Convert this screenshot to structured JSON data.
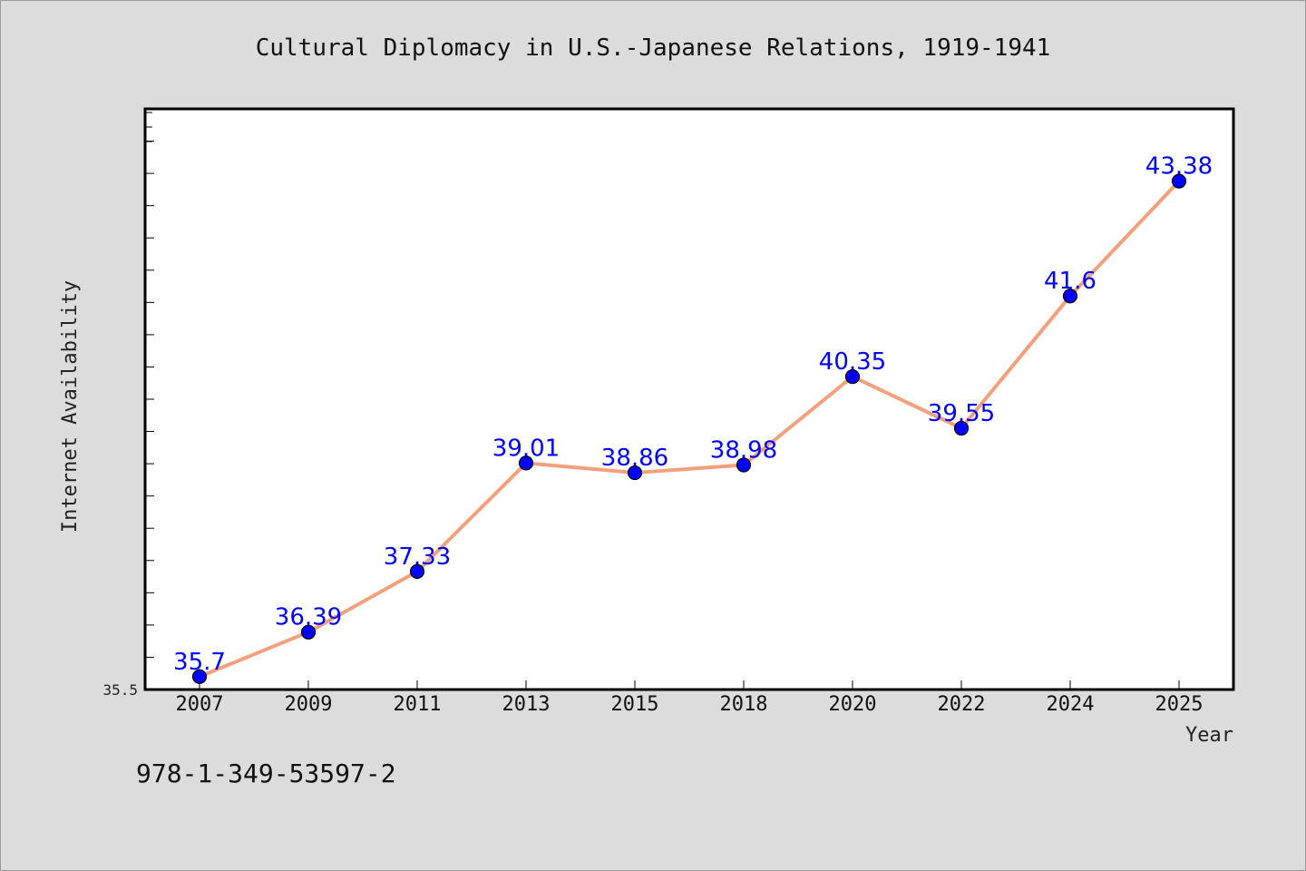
{
  "chart_data": {
    "type": "line",
    "title": "Cultural Diplomacy in U.S.-Japanese Relations, 1919-1941",
    "xlabel": "Year",
    "ylabel": "Internet Availability",
    "categories": [
      "2007",
      "2009",
      "2011",
      "2013",
      "2015",
      "2018",
      "2020",
      "2022",
      "2024",
      "2025"
    ],
    "series": [
      {
        "values": [
          35.7,
          36.39,
          37.33,
          39.01,
          38.86,
          38.98,
          40.35,
          39.55,
          41.6,
          43.38
        ],
        "data_labels": [
          "35.7",
          "36.39",
          "37.33",
          "39.01",
          "38.86",
          "38.98",
          "40.35",
          "39.55",
          "41.6",
          "43.38"
        ]
      }
    ],
    "ylim": [
      35.5,
      44.5
    ],
    "y_tick_label": "35.5",
    "grid": false,
    "colors": {
      "line": "#f4a07c",
      "marker": "#0000ff",
      "label": "#0000ff",
      "background": "#dcdcdc",
      "plot_area": "#ffffff"
    }
  },
  "footer": {
    "code": "978-1-349-53597-2"
  }
}
